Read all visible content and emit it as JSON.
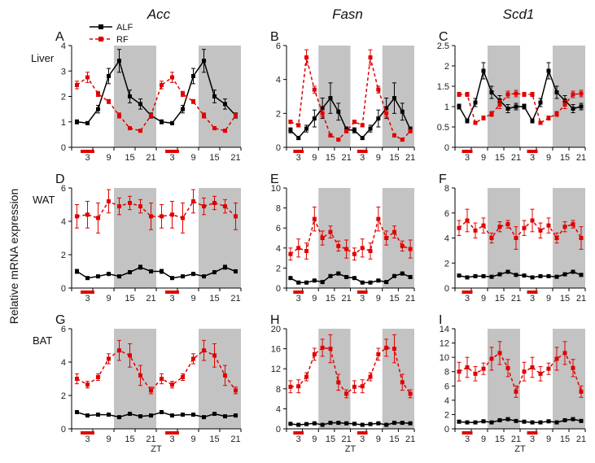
{
  "figure": {
    "ylabel": "Relative mRNA expression",
    "row_labels": [
      "Liver",
      "WAT",
      "BAT"
    ],
    "column_titles": [
      "Acc",
      "Fasn",
      "Scd1"
    ],
    "xlabel": "ZT",
    "legend": [
      {
        "name": "ALF",
        "color": "#000000",
        "dash": "solid"
      },
      {
        "name": "RF",
        "color": "#e00000",
        "dash": "dashed"
      }
    ],
    "colors": {
      "ALF": "#000000",
      "RF": "#e00000",
      "dark_phase": "#c3c3c3",
      "feeding_bar": "#e00000"
    }
  },
  "chart_data": [
    {
      "panel": "A",
      "type": "line",
      "tissue": "Liver",
      "gene": "Acc",
      "title": "Acc",
      "x_ticks": [
        "3",
        "9",
        "15",
        "21",
        "3",
        "9",
        "15",
        "21"
      ],
      "ylim": [
        0,
        4
      ],
      "yticks": [
        "0",
        "1",
        "2",
        "3",
        "4"
      ],
      "series": [
        {
          "name": "ALF",
          "values": [
            1.0,
            0.95,
            1.5,
            2.8,
            3.4,
            2.0,
            1.7,
            1.25,
            1.0,
            0.95,
            1.5,
            2.8,
            3.4,
            2.0,
            1.7,
            1.25
          ],
          "errors": [
            0.08,
            0.06,
            0.15,
            0.3,
            0.45,
            0.25,
            0.2,
            0.1,
            0.08,
            0.06,
            0.15,
            0.3,
            0.45,
            0.25,
            0.2,
            0.1
          ]
        },
        {
          "name": "RF",
          "values": [
            2.45,
            2.75,
            2.1,
            1.8,
            1.25,
            0.75,
            0.65,
            1.25,
            2.45,
            2.75,
            2.1,
            1.8,
            1.25,
            0.75,
            0.65,
            1.25
          ],
          "errors": [
            0.15,
            0.2,
            0.1,
            0.08,
            0.1,
            0.06,
            0.05,
            0.08,
            0.15,
            0.2,
            0.1,
            0.08,
            0.1,
            0.06,
            0.05,
            0.08
          ]
        }
      ]
    },
    {
      "panel": "B",
      "type": "line",
      "tissue": "Liver",
      "gene": "Fasn",
      "title": "Fasn",
      "x_ticks": [
        "3",
        "9",
        "15",
        "21",
        "3",
        "9",
        "15",
        "21"
      ],
      "ylim": [
        0,
        6
      ],
      "yticks": [
        "0",
        "2",
        "4",
        "6"
      ],
      "series": [
        {
          "name": "ALF",
          "values": [
            1.0,
            0.55,
            1.1,
            1.7,
            2.3,
            2.9,
            2.1,
            1.05,
            1.0,
            0.55,
            1.1,
            1.7,
            2.3,
            2.9,
            2.1,
            1.05
          ],
          "errors": [
            0.15,
            0.1,
            0.2,
            0.5,
            0.6,
            0.9,
            0.5,
            0.15,
            0.15,
            0.1,
            0.2,
            0.5,
            0.6,
            0.9,
            0.5,
            0.15
          ]
        },
        {
          "name": "RF",
          "values": [
            1.5,
            1.3,
            5.3,
            3.4,
            2.0,
            0.7,
            0.45,
            0.95,
            1.5,
            1.3,
            5.3,
            3.4,
            2.0,
            0.7,
            0.45,
            0.95
          ],
          "errors": [
            0.1,
            0.1,
            0.45,
            0.2,
            0.2,
            0.1,
            0.06,
            0.1,
            0.1,
            0.1,
            0.45,
            0.2,
            0.2,
            0.1,
            0.06,
            0.1
          ]
        }
      ]
    },
    {
      "panel": "C",
      "type": "line",
      "tissue": "Liver",
      "gene": "Scd1",
      "title": "Scd1",
      "x_ticks": [
        "3",
        "9",
        "15",
        "21",
        "3",
        "9",
        "15",
        "21"
      ],
      "ylim": [
        0,
        2.5
      ],
      "yticks": [
        "0",
        "0.5",
        "1",
        "1.5",
        "2",
        "2.5"
      ],
      "series": [
        {
          "name": "ALF",
          "values": [
            1.0,
            0.65,
            1.1,
            1.88,
            1.35,
            1.15,
            0.95,
            1.0,
            1.0,
            0.65,
            1.1,
            1.88,
            1.35,
            1.15,
            0.95,
            1.0
          ],
          "errors": [
            0.06,
            0.05,
            0.1,
            0.2,
            0.15,
            0.12,
            0.1,
            0.08,
            0.06,
            0.05,
            0.1,
            0.2,
            0.15,
            0.12,
            0.1,
            0.08
          ]
        },
        {
          "name": "RF",
          "values": [
            1.3,
            1.3,
            0.6,
            0.72,
            0.82,
            1.05,
            1.3,
            1.32,
            1.3,
            1.3,
            0.6,
            0.72,
            0.82,
            1.05,
            1.3,
            1.32
          ],
          "errors": [
            0.05,
            0.05,
            0.04,
            0.05,
            0.06,
            0.1,
            0.08,
            0.08,
            0.05,
            0.05,
            0.04,
            0.05,
            0.06,
            0.1,
            0.08,
            0.08
          ]
        }
      ]
    },
    {
      "panel": "D",
      "type": "line",
      "tissue": "WAT",
      "gene": "Acc",
      "x_ticks": [
        "3",
        "9",
        "15",
        "21",
        "3",
        "9",
        "15",
        "21"
      ],
      "ylim": [
        0,
        6
      ],
      "yticks": [
        "0",
        "2",
        "4",
        "6"
      ],
      "series": [
        {
          "name": "ALF",
          "values": [
            1.0,
            0.6,
            0.7,
            0.85,
            0.7,
            0.95,
            1.25,
            1.0,
            1.0,
            0.6,
            0.7,
            0.85,
            0.7,
            0.95,
            1.25,
            1.0
          ],
          "errors": [
            0.12,
            0.08,
            0.08,
            0.1,
            0.08,
            0.1,
            0.12,
            0.1,
            0.12,
            0.08,
            0.08,
            0.1,
            0.08,
            0.1,
            0.12,
            0.1
          ]
        },
        {
          "name": "RF",
          "values": [
            4.3,
            4.4,
            4.2,
            5.2,
            4.9,
            5.1,
            4.9,
            4.3,
            4.3,
            4.4,
            4.2,
            5.2,
            4.9,
            5.1,
            4.9,
            4.3
          ],
          "errors": [
            0.7,
            0.8,
            0.9,
            0.7,
            0.5,
            0.4,
            0.4,
            0.8,
            0.7,
            0.8,
            0.9,
            0.7,
            0.5,
            0.4,
            0.4,
            0.8
          ]
        }
      ]
    },
    {
      "panel": "E",
      "type": "line",
      "tissue": "WAT",
      "gene": "Fasn",
      "x_ticks": [
        "3",
        "9",
        "15",
        "21",
        "3",
        "9",
        "15",
        "21"
      ],
      "ylim": [
        0,
        10
      ],
      "yticks": [
        "0",
        "2",
        "4",
        "6",
        "8",
        "10"
      ],
      "series": [
        {
          "name": "ALF",
          "values": [
            1.0,
            0.55,
            0.55,
            0.75,
            0.6,
            1.2,
            1.45,
            1.1,
            1.0,
            0.55,
            0.55,
            0.75,
            0.6,
            1.2,
            1.45,
            1.1
          ],
          "errors": [
            0.1,
            0.08,
            0.08,
            0.1,
            0.08,
            0.12,
            0.15,
            0.1,
            0.1,
            0.08,
            0.08,
            0.1,
            0.08,
            0.12,
            0.15,
            0.1
          ]
        },
        {
          "name": "RF",
          "values": [
            3.4,
            4.0,
            3.7,
            6.9,
            5.0,
            5.6,
            4.2,
            3.9,
            3.4,
            4.0,
            3.7,
            6.9,
            5.0,
            5.6,
            4.2,
            3.9
          ],
          "errors": [
            0.6,
            0.9,
            0.8,
            1.2,
            0.7,
            0.6,
            0.5,
            0.9,
            0.6,
            0.9,
            0.8,
            1.2,
            0.7,
            0.6,
            0.5,
            0.9
          ]
        }
      ]
    },
    {
      "panel": "F",
      "type": "line",
      "tissue": "WAT",
      "gene": "Scd1",
      "x_ticks": [
        "3",
        "9",
        "15",
        "21",
        "3",
        "9",
        "15",
        "21"
      ],
      "ylim": [
        0,
        8
      ],
      "yticks": [
        "0",
        "2",
        "4",
        "6",
        "8"
      ],
      "series": [
        {
          "name": "ALF",
          "values": [
            1.0,
            0.85,
            0.95,
            0.95,
            0.9,
            1.1,
            1.3,
            1.05,
            1.0,
            0.85,
            0.95,
            0.95,
            0.9,
            1.1,
            1.3,
            1.05
          ],
          "errors": [
            0.08,
            0.06,
            0.08,
            0.08,
            0.08,
            0.1,
            0.1,
            0.08,
            0.08,
            0.06,
            0.08,
            0.08,
            0.08,
            0.1,
            0.1,
            0.08
          ]
        },
        {
          "name": "RF",
          "values": [
            4.8,
            5.4,
            4.6,
            5.0,
            4.0,
            4.9,
            5.1,
            4.0,
            4.8,
            5.4,
            4.6,
            5.0,
            4.0,
            4.9,
            5.1,
            4.0
          ],
          "errors": [
            0.6,
            0.9,
            0.6,
            0.6,
            0.4,
            0.4,
            0.3,
            0.9,
            0.6,
            0.9,
            0.6,
            0.6,
            0.4,
            0.4,
            0.3,
            0.9
          ]
        }
      ]
    },
    {
      "panel": "G",
      "type": "line",
      "tissue": "BAT",
      "gene": "Acc",
      "xlabel": "ZT",
      "x_ticks": [
        "3",
        "9",
        "15",
        "21",
        "3",
        "9",
        "15",
        "21"
      ],
      "ylim": [
        0,
        6
      ],
      "yticks": [
        "0",
        "2",
        "4",
        "6"
      ],
      "series": [
        {
          "name": "ALF",
          "values": [
            1.0,
            0.8,
            0.85,
            0.85,
            0.7,
            0.9,
            0.75,
            0.8,
            1.0,
            0.8,
            0.85,
            0.85,
            0.7,
            0.9,
            0.75,
            0.8
          ],
          "errors": [
            0.06,
            0.05,
            0.05,
            0.05,
            0.05,
            0.06,
            0.05,
            0.05,
            0.06,
            0.05,
            0.05,
            0.05,
            0.05,
            0.06,
            0.05,
            0.05
          ]
        },
        {
          "name": "RF",
          "values": [
            3.0,
            2.65,
            3.1,
            4.2,
            4.7,
            4.4,
            3.2,
            2.3,
            3.0,
            2.65,
            3.1,
            4.2,
            4.7,
            4.4,
            3.2,
            2.3
          ],
          "errors": [
            0.3,
            0.2,
            0.2,
            0.3,
            0.6,
            0.7,
            0.6,
            0.2,
            0.3,
            0.2,
            0.2,
            0.3,
            0.6,
            0.7,
            0.6,
            0.2
          ]
        }
      ]
    },
    {
      "panel": "H",
      "type": "line",
      "tissue": "BAT",
      "gene": "Fasn",
      "xlabel": "ZT",
      "x_ticks": [
        "3",
        "9",
        "15",
        "21",
        "3",
        "9",
        "15",
        "21"
      ],
      "ylim": [
        0,
        20
      ],
      "yticks": [
        "0",
        "4",
        "8",
        "12",
        "16",
        "20"
      ],
      "series": [
        {
          "name": "ALF",
          "values": [
            1.0,
            0.8,
            0.95,
            1.1,
            0.8,
            1.2,
            1.2,
            1.1,
            1.0,
            0.8,
            0.95,
            1.1,
            0.8,
            1.2,
            1.2,
            1.1
          ],
          "errors": [
            0.1,
            0.08,
            0.1,
            0.12,
            0.08,
            0.15,
            0.12,
            0.1,
            0.1,
            0.08,
            0.1,
            0.12,
            0.08,
            0.15,
            0.12,
            0.1
          ]
        },
        {
          "name": "RF",
          "values": [
            8.4,
            8.5,
            10.4,
            14.9,
            16.2,
            16.0,
            9.3,
            7.0,
            8.4,
            8.5,
            10.4,
            14.9,
            16.2,
            16.0,
            9.3,
            7.0
          ],
          "errors": [
            1.2,
            1.3,
            0.8,
            1.2,
            1.7,
            2.8,
            1.6,
            0.8,
            1.2,
            1.3,
            0.8,
            1.2,
            1.7,
            2.8,
            1.6,
            0.8
          ]
        }
      ]
    },
    {
      "panel": "I",
      "type": "line",
      "tissue": "BAT",
      "gene": "Scd1",
      "xlabel": "ZT",
      "x_ticks": [
        "3",
        "9",
        "15",
        "21",
        "3",
        "9",
        "15",
        "21"
      ],
      "ylim": [
        0,
        14
      ],
      "yticks": [
        "0",
        "2",
        "4",
        "6",
        "8",
        "10",
        "12",
        "14"
      ],
      "series": [
        {
          "name": "ALF",
          "values": [
            1.0,
            0.9,
            0.9,
            1.05,
            0.9,
            1.2,
            1.35,
            1.1,
            1.0,
            0.9,
            0.9,
            1.05,
            0.9,
            1.2,
            1.35,
            1.1
          ],
          "errors": [
            0.1,
            0.08,
            0.08,
            0.1,
            0.08,
            0.12,
            0.12,
            0.1,
            0.1,
            0.08,
            0.08,
            0.1,
            0.08,
            0.12,
            0.12,
            0.1
          ]
        },
        {
          "name": "RF",
          "values": [
            8.0,
            8.6,
            7.7,
            8.4,
            9.8,
            10.6,
            8.5,
            5.2,
            8.0,
            8.6,
            7.7,
            8.4,
            9.8,
            10.6,
            8.5,
            5.2
          ],
          "errors": [
            1.3,
            1.4,
            1.0,
            0.8,
            1.6,
            1.6,
            1.2,
            0.8,
            1.3,
            1.4,
            1.0,
            0.8,
            1.6,
            1.6,
            1.2,
            0.8
          ]
        }
      ]
    }
  ]
}
